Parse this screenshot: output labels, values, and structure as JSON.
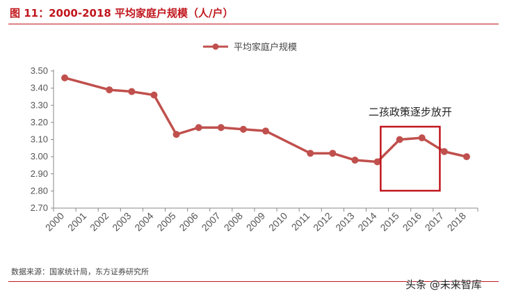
{
  "header": {
    "title": "图 11：2000-2018 平均家庭户规模（人/户）"
  },
  "footer": {
    "source": "数据来源：国家统计局，东方证券研究所",
    "watermark": "头条 @未来智库"
  },
  "colors": {
    "accent": "#c0161d",
    "series": "#c0504d",
    "highlight_box": "#c0161d"
  },
  "chart_data": {
    "type": "line",
    "title": "",
    "xlabel": "",
    "ylabel": "",
    "x": [
      "2000",
      "2001",
      "2002",
      "2003",
      "2004",
      "2005",
      "2006",
      "2007",
      "2008",
      "2009",
      "2010",
      "2011",
      "2012",
      "2013",
      "2014",
      "2015",
      "2016",
      "2017",
      "2018"
    ],
    "series": [
      {
        "name": "平均家庭户规模",
        "values": [
          3.46,
          null,
          3.39,
          3.38,
          3.36,
          3.13,
          3.17,
          3.17,
          3.16,
          3.15,
          null,
          3.02,
          3.02,
          2.98,
          2.97,
          3.1,
          3.11,
          3.03,
          3.0
        ]
      }
    ],
    "ylim": [
      2.7,
      3.5
    ],
    "yticks": [
      "2.70",
      "2.80",
      "2.90",
      "3.00",
      "3.10",
      "3.20",
      "3.30",
      "3.40",
      "3.50"
    ],
    "grid": false,
    "legend": "top-center",
    "annotation": {
      "text": "二孩政策逐步放开",
      "from": "2015",
      "to": "2017"
    }
  }
}
